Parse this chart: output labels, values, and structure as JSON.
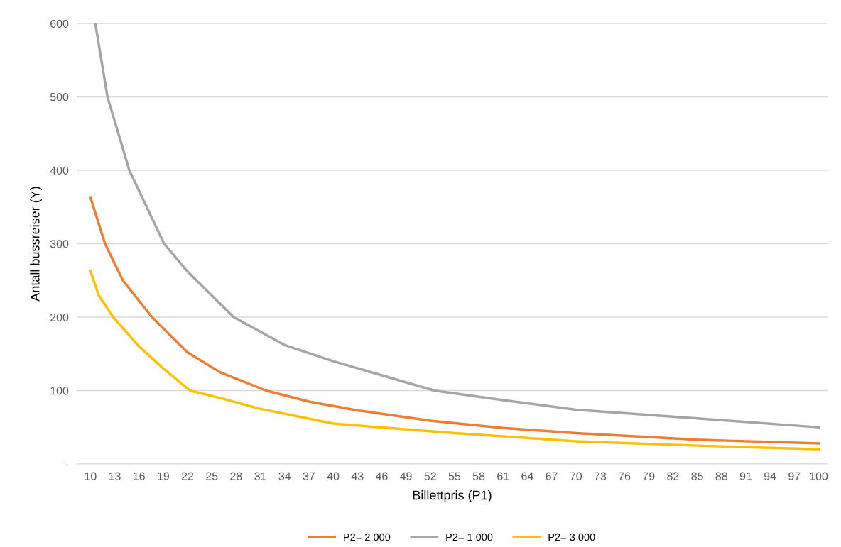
{
  "chart_data": {
    "type": "line",
    "xlabel": "Billettpris (P1)",
    "ylabel": "Antall bussreiser (Y)",
    "xlim": [
      8.3,
      101.1
    ],
    "xticks": [
      10,
      13,
      16,
      19,
      22,
      25,
      28,
      31,
      34,
      37,
      40,
      43,
      46,
      49,
      52,
      55,
      58,
      61,
      64,
      67,
      70,
      73,
      76,
      79,
      82,
      85,
      88,
      91,
      94,
      97,
      100
    ],
    "ylim": [
      0,
      600
    ],
    "yticks": [
      {
        "value": 0,
        "label": "-"
      },
      100,
      200,
      300,
      400,
      500,
      600
    ],
    "grid": "y",
    "legend": "bottom",
    "marker": "none",
    "line_style": "solid",
    "series": [
      {
        "name": "P2= 2 000",
        "color": "#ed7d31",
        "x": [
          10,
          11.8,
          14,
          17.6,
          22,
          26,
          31.7,
          37,
          43,
          52,
          61,
          70,
          85,
          100
        ],
        "values": [
          363,
          300,
          250,
          200,
          152,
          125,
          100,
          85,
          73,
          59,
          49,
          42,
          33,
          28
        ]
      },
      {
        "name": "P2= 1 000",
        "color": "#a5a5a5",
        "x": [
          10.6,
          12.1,
          14.8,
          19.1,
          22,
          27.7,
          34,
          40,
          52.5,
          61,
          70,
          85,
          100
        ],
        "values": [
          600,
          500,
          400,
          300,
          262,
          200,
          162,
          140,
          100,
          87,
          74,
          62,
          50
        ]
      },
      {
        "name": "P2= 3 000",
        "color": "#ffc000",
        "x": [
          10,
          11,
          12.8,
          16,
          19,
          22.3,
          26,
          31,
          40,
          55,
          70,
          85,
          100
        ],
        "values": [
          263,
          230,
          200,
          160,
          130,
          100,
          90,
          75,
          55,
          42,
          31,
          25,
          20
        ]
      }
    ]
  }
}
